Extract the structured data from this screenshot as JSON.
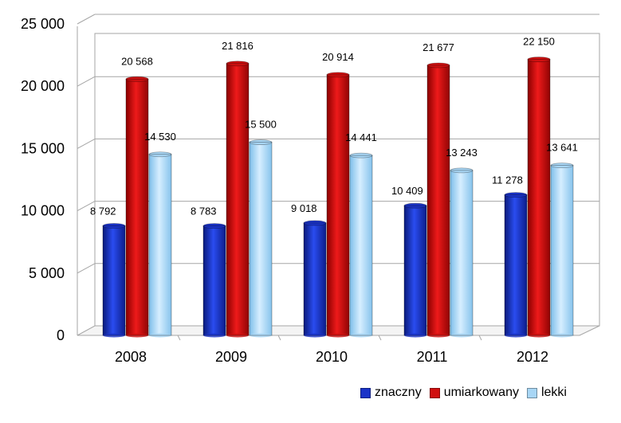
{
  "chart_data": {
    "type": "bar",
    "categories": [
      "2008",
      "2009",
      "2010",
      "2011",
      "2012"
    ],
    "series": [
      {
        "name": "znaczny",
        "values": [
          8792,
          8783,
          9018,
          10409,
          11278
        ],
        "labels": [
          "8 792",
          "8 783",
          "9 018",
          "10 409",
          "11 278"
        ],
        "color": "#1a33c8"
      },
      {
        "name": "umiarkowany",
        "values": [
          20568,
          21816,
          20914,
          21677,
          22150
        ],
        "labels": [
          "20 568",
          "21 816",
          "20 914",
          "21 677",
          "22 150"
        ],
        "color": "#d01010"
      },
      {
        "name": "lekki",
        "values": [
          14530,
          15500,
          14441,
          13243,
          13641
        ],
        "labels": [
          "14 530",
          "15 500",
          "14 441",
          "13 243",
          "13 641"
        ],
        "color": "#a8d6f5"
      }
    ],
    "y_ticks": [
      0,
      5000,
      10000,
      15000,
      20000,
      25000
    ],
    "y_tick_labels": [
      "0",
      "5 000",
      "10 000",
      "15 000",
      "20 000",
      "25 000"
    ],
    "ylim": [
      0,
      25000
    ],
    "grid": true,
    "legend_position": "bottom-right"
  }
}
